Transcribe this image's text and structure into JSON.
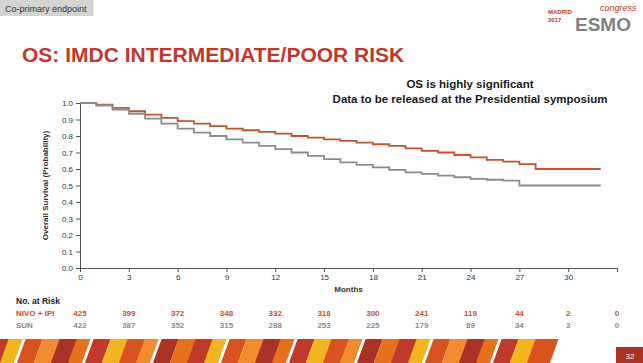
{
  "chart_data": {
    "type": "line",
    "title": "OS: IMDC INTERMEDIATE/POOR RISK",
    "annotations": [
      "OS is highly significant",
      "Data to be released at the Presidential symposium"
    ],
    "x_label": "Months",
    "y_label": "Overall Survival (Probability)",
    "x": [
      0,
      1,
      2,
      3,
      4,
      5,
      6,
      7,
      8,
      9,
      10,
      11,
      12,
      13,
      14,
      15,
      16,
      17,
      18,
      19,
      20,
      21,
      22,
      23,
      24,
      25,
      26,
      27,
      28,
      29,
      30,
      31,
      32
    ],
    "series": [
      {
        "name": "NIVO + IPI",
        "color": "#c4522b",
        "values": [
          1.0,
          0.99,
          0.97,
          0.95,
          0.93,
          0.91,
          0.89,
          0.875,
          0.86,
          0.845,
          0.835,
          0.825,
          0.815,
          0.8,
          0.79,
          0.78,
          0.77,
          0.76,
          0.75,
          0.74,
          0.725,
          0.71,
          0.7,
          0.685,
          0.67,
          0.655,
          0.645,
          0.63,
          0.6,
          0.6,
          0.6,
          0.6,
          0.6
        ],
        "at_risk": [
          425,
          399,
          372,
          348,
          332,
          318,
          300,
          241,
          119,
          44,
          2,
          0
        ]
      },
      {
        "name": "SUN",
        "color": "#8c8c8c",
        "values": [
          1.0,
          0.985,
          0.96,
          0.935,
          0.905,
          0.875,
          0.845,
          0.82,
          0.8,
          0.78,
          0.76,
          0.74,
          0.72,
          0.7,
          0.68,
          0.66,
          0.64,
          0.625,
          0.61,
          0.595,
          0.58,
          0.57,
          0.56,
          0.55,
          0.54,
          0.535,
          0.53,
          0.5,
          0.5,
          0.5,
          0.5,
          0.5,
          0.5
        ],
        "at_risk": [
          422,
          387,
          352,
          315,
          288,
          253,
          225,
          179,
          89,
          34,
          3,
          0
        ]
      }
    ],
    "at_risk_title": "No. at Risk",
    "at_risk_x": [
      0,
      3,
      6,
      9,
      12,
      15,
      18,
      21,
      24,
      27,
      30,
      33
    ],
    "line_style": "step",
    "grid": false,
    "xlim": [
      0,
      33
    ],
    "xticks": [
      0,
      3,
      6,
      9,
      12,
      15,
      18,
      21,
      24,
      27,
      30
    ],
    "ylim": [
      0,
      1
    ],
    "yticks": [
      {
        "value": 0,
        "label": "0.0"
      },
      0.1,
      0.2,
      0.3,
      0.4,
      0.5,
      0.6,
      0.7,
      0.8,
      0.9,
      {
        "value": 1,
        "label": "1.0"
      }
    ]
  },
  "slide": {
    "tag": "Co-primary endpoint",
    "logo": {
      "city": "MADRID",
      "year": "2017",
      "name": "ESMO",
      "event": "congress"
    },
    "page": "32"
  }
}
